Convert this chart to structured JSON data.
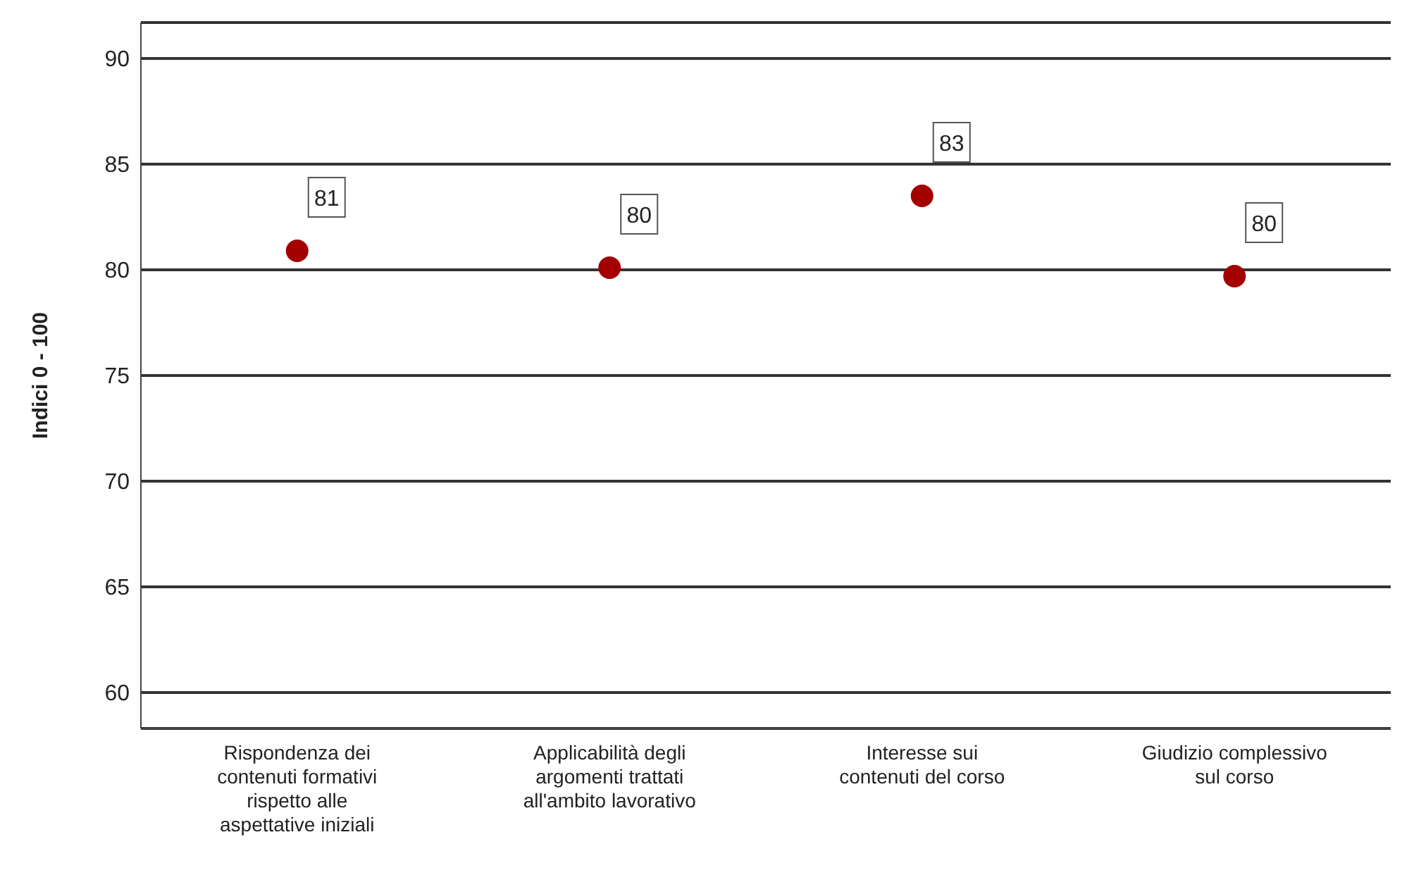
{
  "chart_data": {
    "type": "scatter",
    "ylabel": "Indici 0 - 100",
    "categories": [
      "Rispondenza dei contenuti formativi rispetto alle aspettative iniziali",
      "Applicabilità degli argomenti trattati all'ambito lavorativo",
      "Interesse sui contenuti del corso",
      "Giudizio complessivo sul corso"
    ],
    "series": [
      {
        "color": "#a50000",
        "values": [
          80.9,
          80.1,
          83.5,
          79.7
        ],
        "value_labels": [
          "81",
          "80",
          "83",
          "80"
        ]
      }
    ],
    "ylim": [
      58.3,
      91.7
    ],
    "yticks": [
      60,
      65,
      70,
      75,
      80,
      85,
      90
    ],
    "grid": "y",
    "marker": "circle"
  }
}
